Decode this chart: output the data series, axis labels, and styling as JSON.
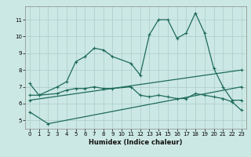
{
  "xlabel": "Humidex (Indice chaleur)",
  "xlim": [
    -0.5,
    23.5
  ],
  "ylim": [
    4.5,
    11.8
  ],
  "yticks": [
    5,
    6,
    7,
    8,
    9,
    10,
    11
  ],
  "xticks": [
    0,
    1,
    2,
    3,
    4,
    5,
    6,
    7,
    8,
    9,
    10,
    11,
    12,
    13,
    14,
    15,
    16,
    17,
    18,
    19,
    20,
    21,
    22,
    23
  ],
  "bg_color": "#cce8e4",
  "line_color": "#1e6b5a",
  "grid_color": "#aaccca",
  "line1_x": [
    0,
    1,
    3,
    4,
    5,
    6,
    7,
    8,
    9,
    11,
    12,
    13,
    14,
    15,
    16,
    17,
    18,
    19,
    20,
    21,
    22,
    23
  ],
  "line1_y": [
    7.2,
    6.5,
    7.0,
    7.3,
    8.5,
    8.8,
    9.3,
    9.2,
    8.8,
    8.4,
    7.7,
    10.1,
    11.0,
    11.0,
    9.9,
    10.2,
    11.4,
    10.2,
    8.1,
    7.0,
    6.2,
    6.2
  ],
  "line2_x": [
    0,
    1,
    3,
    4,
    5,
    6,
    7,
    8,
    9,
    11,
    12,
    13,
    14,
    15,
    16,
    17,
    18,
    19,
    20,
    21,
    22,
    23
  ],
  "line2_y": [
    6.5,
    6.5,
    6.6,
    6.8,
    6.9,
    6.9,
    7.0,
    6.9,
    6.9,
    7.0,
    6.5,
    6.4,
    6.5,
    6.4,
    6.3,
    6.3,
    6.6,
    6.5,
    6.4,
    6.3,
    6.1,
    5.6
  ],
  "line3_x": [
    0,
    2,
    23
  ],
  "line3_y": [
    5.5,
    4.8,
    7.0
  ],
  "line4_x": [
    0,
    23
  ],
  "line4_y": [
    6.2,
    8.0
  ]
}
